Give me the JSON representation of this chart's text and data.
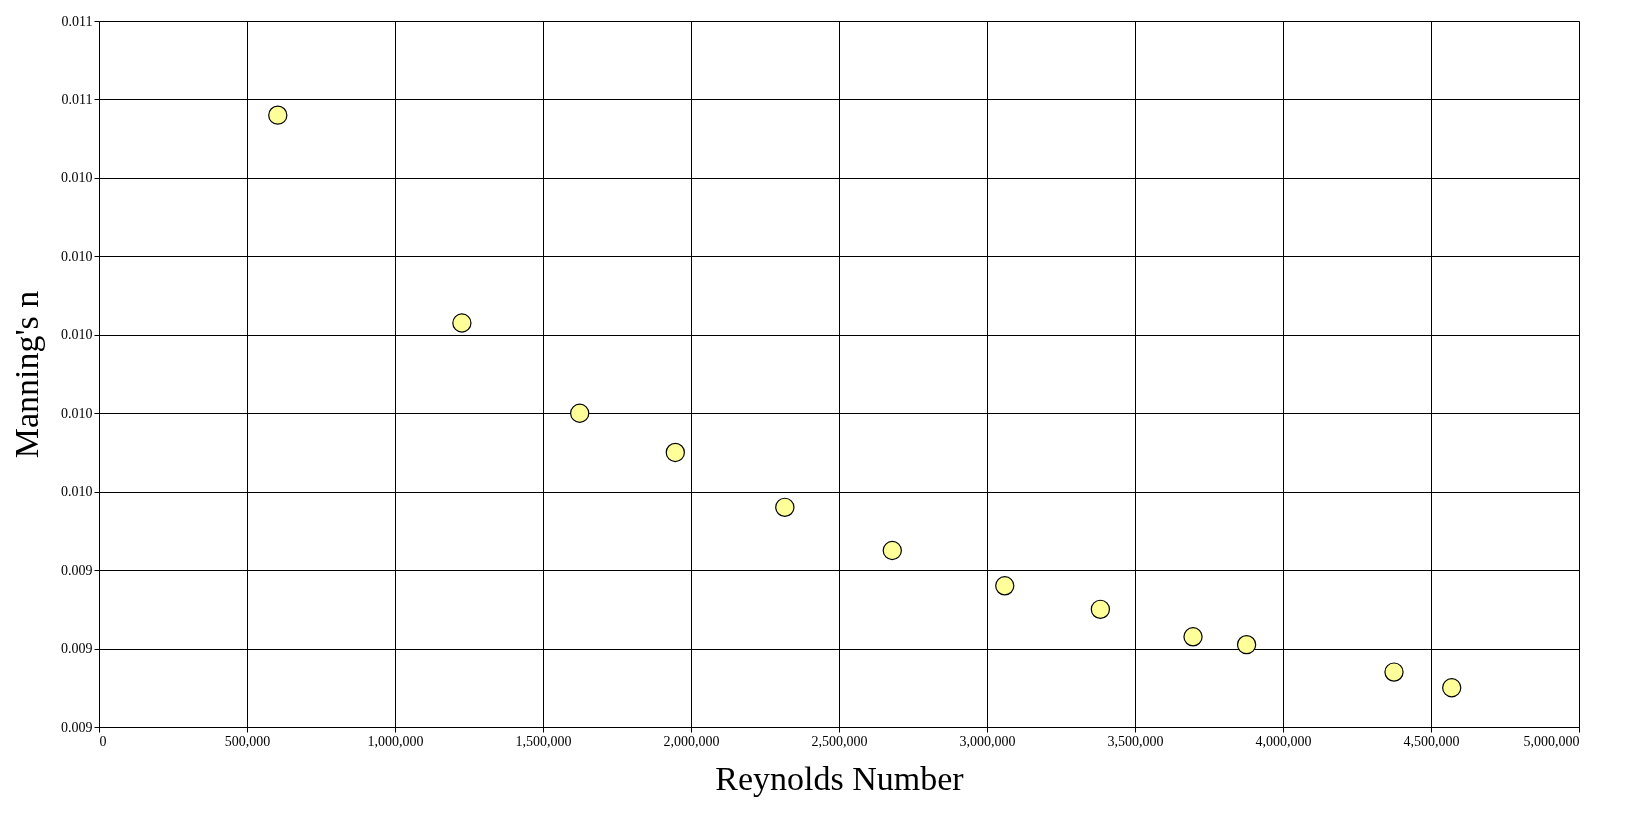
{
  "chart_data": {
    "type": "scatter",
    "xlabel": "Reynolds Number",
    "ylabel": "Manning's n",
    "x": [
      604000,
      1226000,
      1624000,
      1947000,
      2317000,
      2680000,
      3060000,
      3383000,
      3696000,
      3877000,
      4375000,
      4570000
    ],
    "series": [
      {
        "color": "#ffff99",
        "values": [
          0.01056,
          0.01003,
          0.0098,
          0.0097,
          0.00956,
          0.00945,
          0.00936,
          0.0093,
          0.00923,
          0.00921,
          0.00914,
          0.0091
        ]
      }
    ],
    "xlim": [
      0,
      5000000
    ],
    "xticks": [
      0,
      {
        "value": 500000,
        "label": "500,000"
      },
      {
        "value": 1000000,
        "label": "1,000,000"
      },
      {
        "value": 1500000,
        "label": "1,500,000"
      },
      {
        "value": 2000000,
        "label": "2,000,000"
      },
      {
        "value": 2500000,
        "label": "2,500,000"
      },
      {
        "value": 3000000,
        "label": "3,000,000"
      },
      {
        "value": 3500000,
        "label": "3,500,000"
      },
      {
        "value": 4000000,
        "label": "4,000,000"
      },
      {
        "value": 4500000,
        "label": "4,500,000"
      },
      {
        "value": 5000000,
        "label": "5,000,000"
      }
    ],
    "ylim": [
      0.009,
      0.0108
    ],
    "yticks": [
      {
        "value": 0.009,
        "label": "0.009"
      },
      {
        "value": 0.0092,
        "label": "0.009"
      },
      {
        "value": 0.0094,
        "label": "0.009"
      },
      {
        "value": 0.0096,
        "label": "0.010"
      },
      {
        "value": 0.0098,
        "label": "0.010"
      },
      {
        "value": 0.01,
        "label": "0.010"
      },
      {
        "value": 0.0102,
        "label": "0.010"
      },
      {
        "value": 0.0104,
        "label": "0.010"
      },
      {
        "value": 0.0106,
        "label": "0.011"
      },
      {
        "value": 0.0108,
        "label": "0.011"
      }
    ],
    "grid": true,
    "marker": "circle",
    "legend": false
  }
}
